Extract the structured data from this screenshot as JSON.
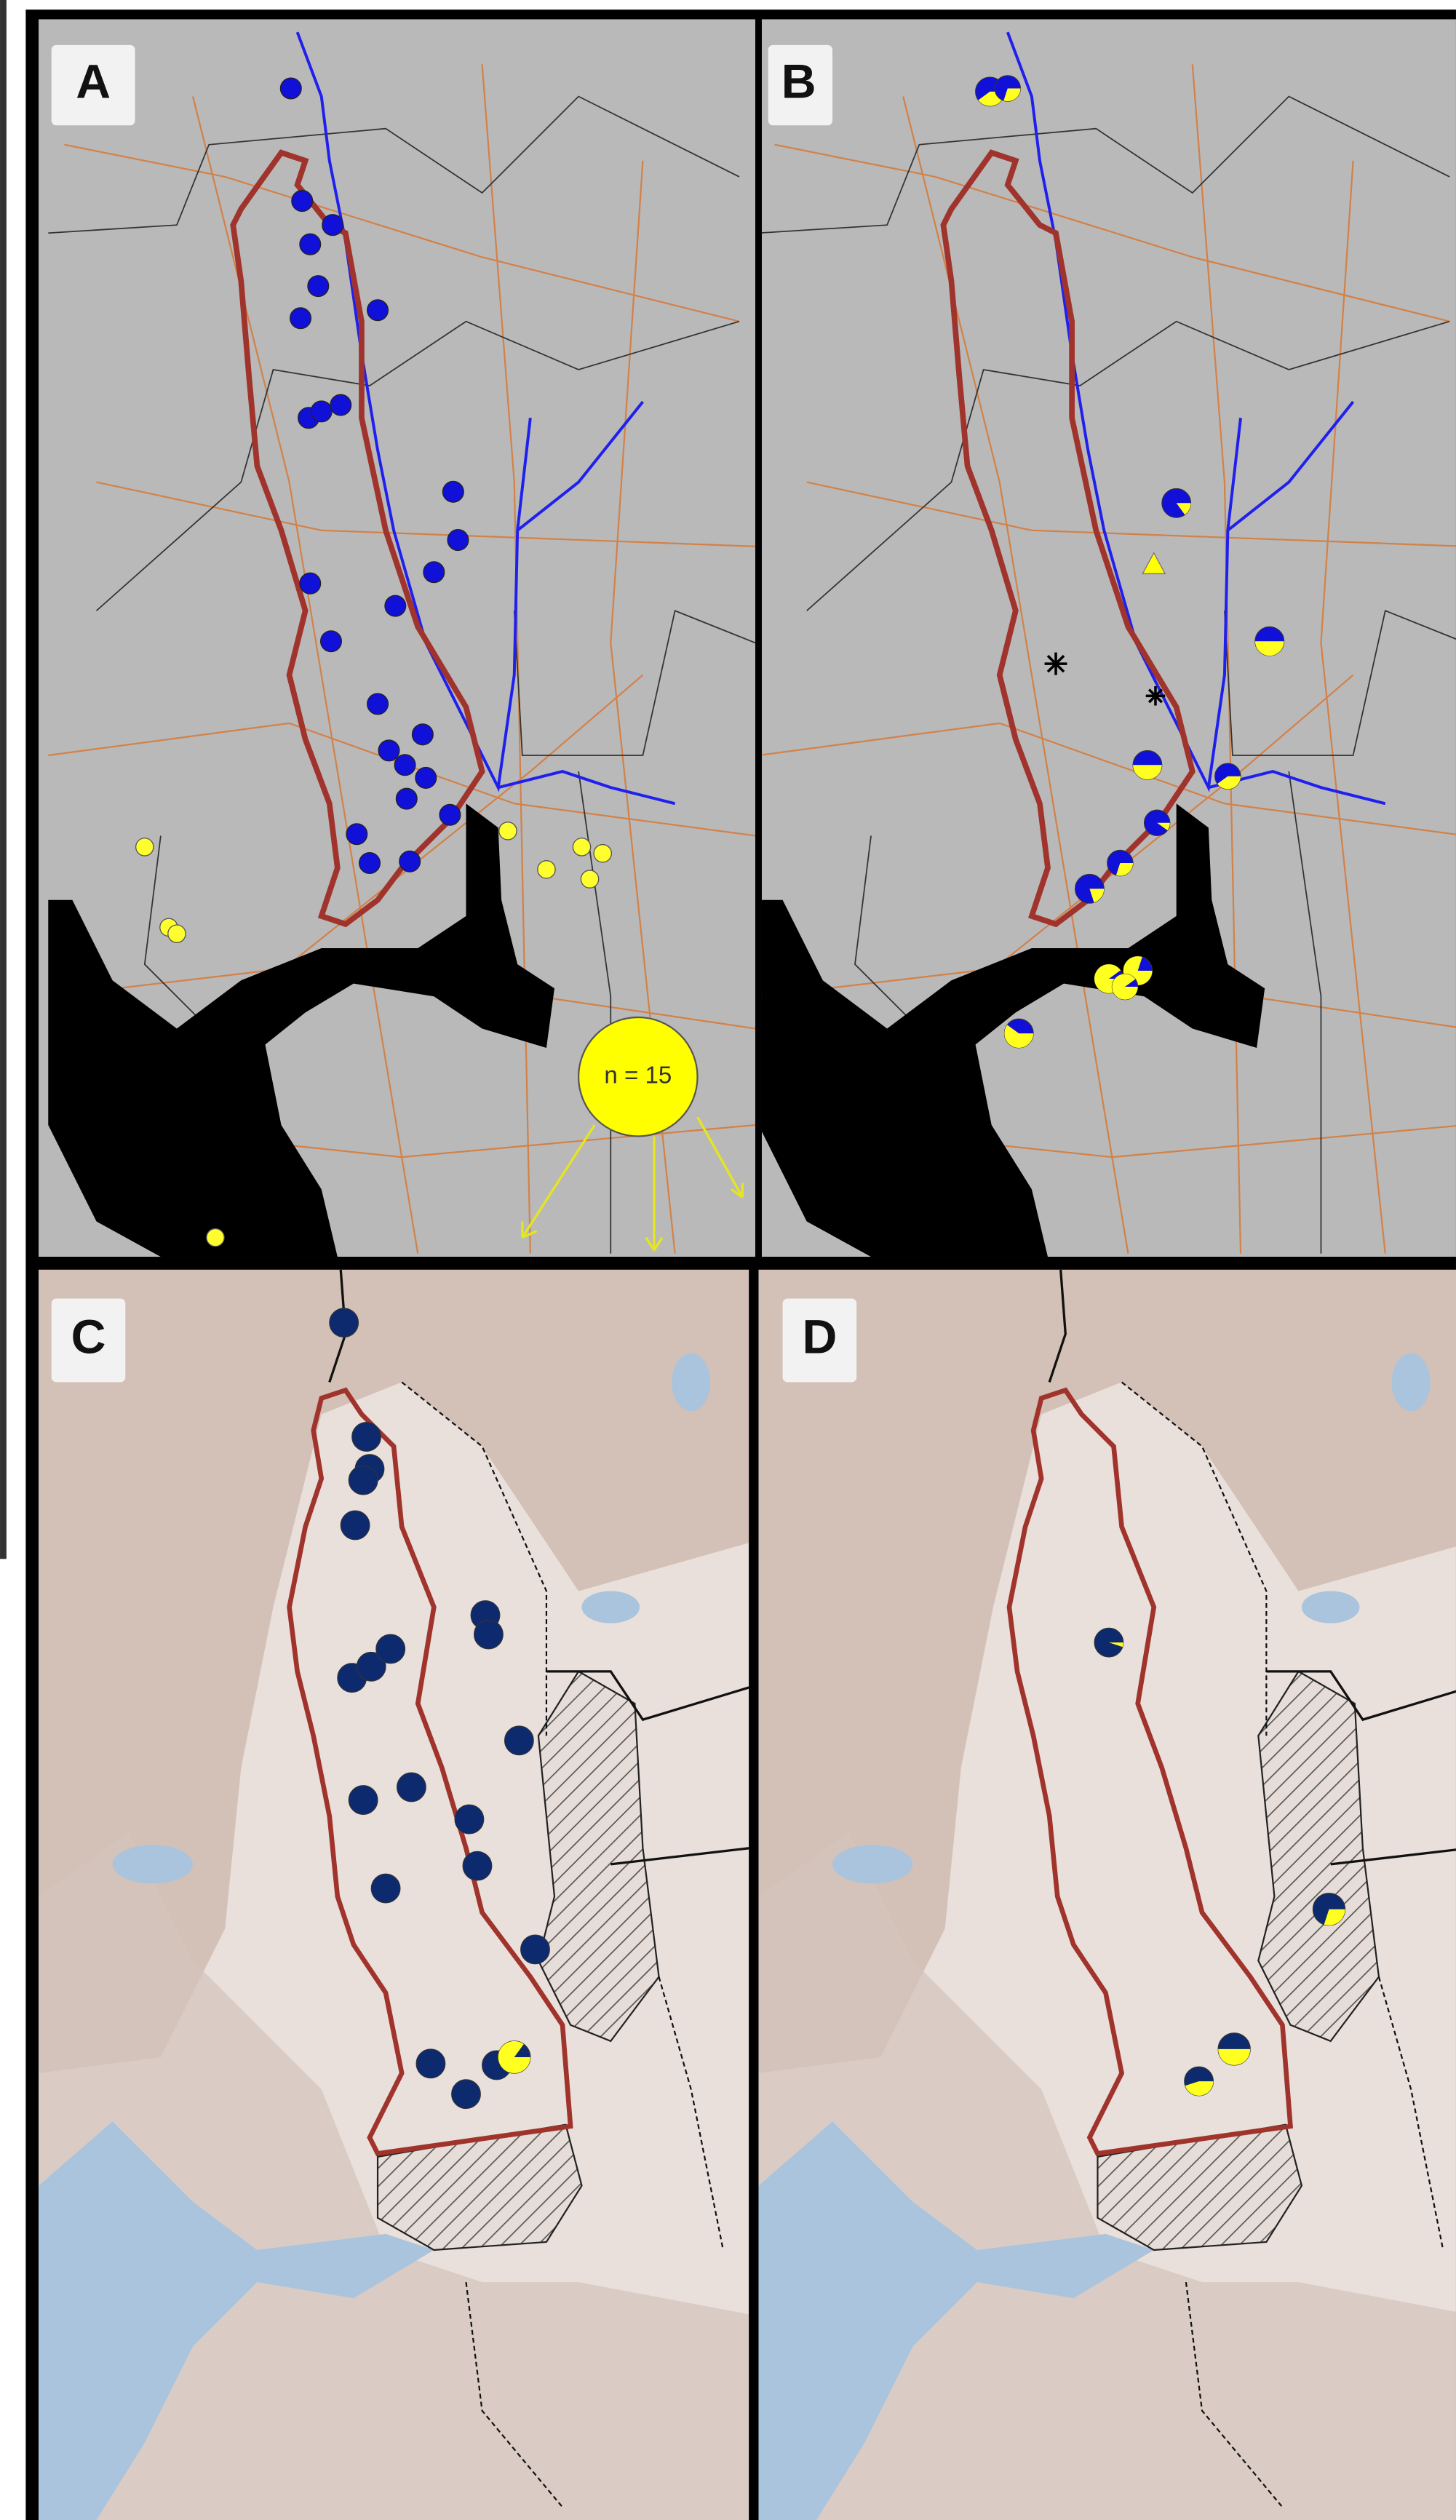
{
  "panels": [
    {
      "label": "A"
    },
    {
      "label": "B"
    },
    {
      "label": "C"
    },
    {
      "label": "D"
    }
  ],
  "annotation": "n = 15"
}
